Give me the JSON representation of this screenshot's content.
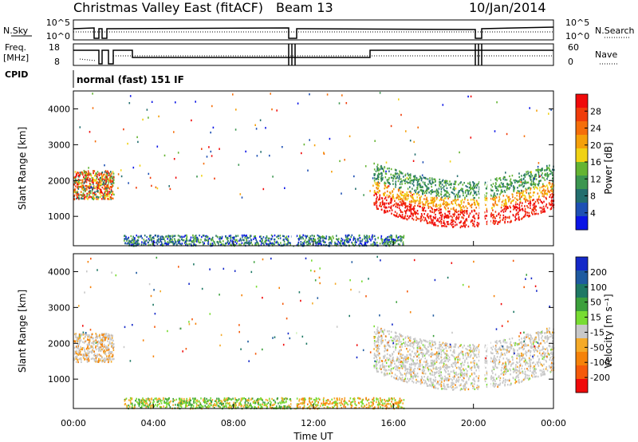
{
  "header": {
    "title": "Christmas Valley East (fitACF)",
    "beam": "Beam 13",
    "date": "10/Jan/2014"
  },
  "status_panels": {
    "noise": {
      "left_label": "N.Sky",
      "right_label": "N.Search",
      "left_ticks": [
        "10^5",
        "10^0"
      ],
      "right_ticks": [
        "10^5",
        "10^0"
      ]
    },
    "freq": {
      "left_label_1": "Freq.",
      "left_label_2": "[MHz]",
      "right_label": "Nave",
      "left_ticks": [
        "18",
        "8"
      ],
      "right_ticks": [
        "60",
        "0"
      ]
    },
    "cpid": {
      "label": "CPID",
      "value": "normal (fast) 151 IF"
    }
  },
  "colors": {
    "power_scale": [
      "#0a14e6",
      "#1e50b4",
      "#236e6e",
      "#3c9650",
      "#64b432",
      "#f0d214",
      "#f5a00a",
      "#f56e0a",
      "#f03c0a",
      "#f00a0a"
    ],
    "velocity_scale": [
      "#f00a0a",
      "#f55a0a",
      "#f5820a",
      "#f5aa28",
      "#c8c8c8",
      "#78dc32",
      "#3ca03c",
      "#1e7864",
      "#1e5aa0",
      "#1428c8"
    ]
  },
  "chart_data": [
    {
      "type": "heatmap",
      "name": "power",
      "ylabel": "Slant Range [km]",
      "ylim": [
        180,
        4500
      ],
      "y_ticks": [
        "1000",
        "2000",
        "3000",
        "4000"
      ],
      "xlim": [
        0,
        24
      ],
      "x_ticks": [
        "00:00",
        "04:00",
        "08:00",
        "12:00",
        "16:00",
        "20:00",
        "00:00"
      ],
      "colorbar": {
        "label": "Power [dB]",
        "ticks": [
          "4",
          "8",
          "12",
          "16",
          "20",
          "24",
          "28"
        ],
        "range": [
          0,
          30
        ]
      }
    },
    {
      "type": "heatmap",
      "name": "velocity",
      "ylabel": "Slant Range [km]",
      "ylim": [
        180,
        4500
      ],
      "y_ticks": [
        "1000",
        "2000",
        "3000",
        "4000"
      ],
      "xlim": [
        0,
        24
      ],
      "x_ticks": [
        "00:00",
        "04:00",
        "08:00",
        "12:00",
        "16:00",
        "20:00",
        "00:00"
      ],
      "xlabel": "Time UT",
      "colorbar": {
        "label": "Velocity [m s⁻¹]",
        "ticks": [
          "200",
          "100",
          "50",
          "15",
          "-15",
          "-50",
          "-100",
          "-200"
        ]
      }
    }
  ]
}
